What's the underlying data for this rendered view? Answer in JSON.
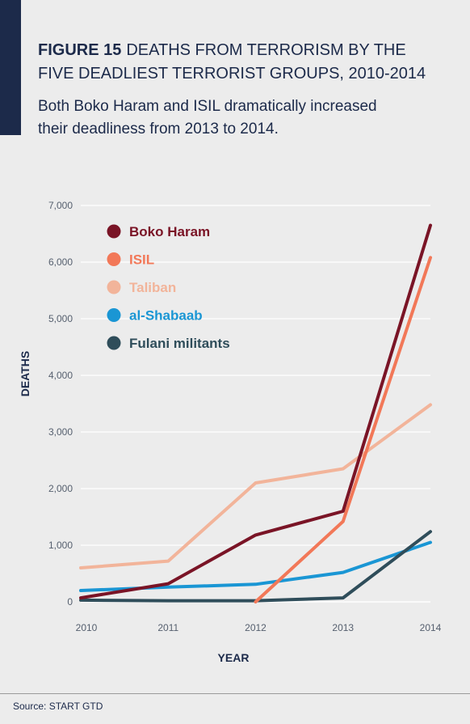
{
  "header": {
    "figure_label": "FIGURE 15",
    "title_line1": "DEATHS FROM TERRORISM BY THE",
    "title_line2": "FIVE DEADLIEST TERRORIST GROUPS, 2010-2014",
    "subtitle_line1": "Both Boko Haram and ISIL dramatically increased",
    "subtitle_line2": "their deadliness from 2013 to 2014."
  },
  "footer": {
    "source": "Source: START GTD"
  },
  "colors": {
    "accent": "#1c2a4a",
    "background": "#ececec"
  },
  "chart_data": {
    "type": "line",
    "title": "",
    "xlabel": "YEAR",
    "ylabel": "DEATHS",
    "x": [
      "2010",
      "2011",
      "2012",
      "2013",
      "2014"
    ],
    "ylim": [
      0,
      7000
    ],
    "yticks": [
      0,
      1000,
      2000,
      3000,
      4000,
      5000,
      6000,
      7000
    ],
    "ytick_labels": [
      "0",
      "1,000",
      "2,000",
      "3,000",
      "4,000",
      "5,000",
      "6,000",
      "7,000"
    ],
    "grid": true,
    "legend_position": "top-left",
    "series": [
      {
        "name": "Taliban",
        "color": "#f2b49a",
        "values": [
          600,
          720,
          2100,
          2350,
          3480
        ]
      },
      {
        "name": "al-Shabaab",
        "color": "#1a96d4",
        "values": [
          200,
          260,
          310,
          520,
          1050
        ]
      },
      {
        "name": "Fulani militants",
        "color": "#2f4d5a",
        "values": [
          30,
          20,
          20,
          70,
          1240
        ]
      },
      {
        "name": "ISIL",
        "color": "#f27858",
        "values": [
          null,
          null,
          0,
          1420,
          6080
        ]
      },
      {
        "name": "Boko Haram",
        "color": "#7a1426",
        "values": [
          70,
          320,
          1180,
          1600,
          6650
        ]
      }
    ],
    "legend_order": [
      "Boko Haram",
      "ISIL",
      "Taliban",
      "al-Shabaab",
      "Fulani militants"
    ]
  }
}
